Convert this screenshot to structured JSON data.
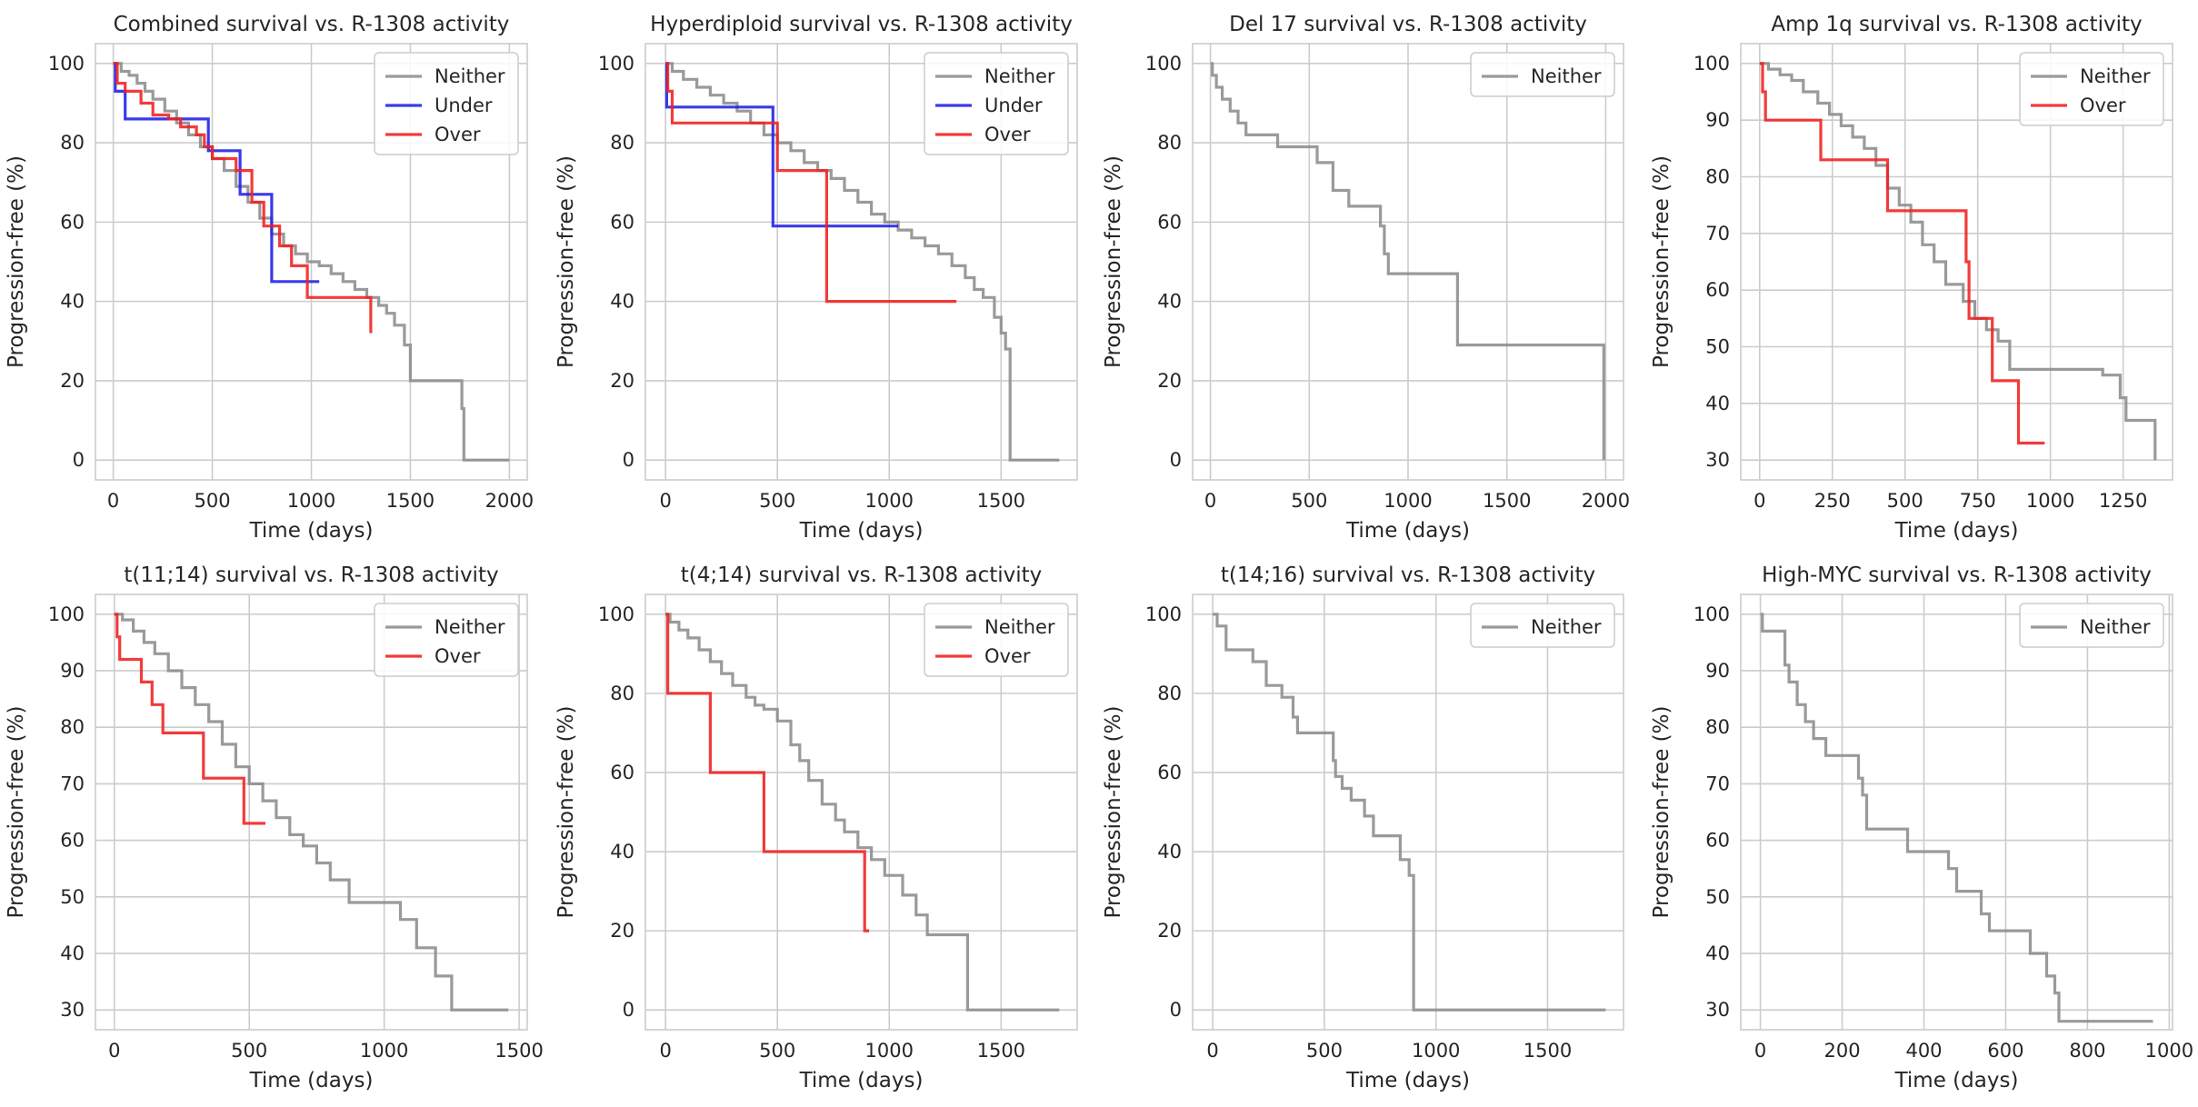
{
  "colors": {
    "Neither": "#8c8c8c",
    "Under": "#1f1fe6",
    "Over": "#f02020"
  },
  "chart_data": [
    {
      "type": "line",
      "title": "Combined survival vs. R-1308 activity",
      "xlabel": "Time (days)",
      "ylabel": "Progression-free (%)",
      "xlim": [
        -90,
        2090
      ],
      "ylim": [
        -5,
        105
      ],
      "xticks": [
        0,
        500,
        1000,
        1500,
        2000
      ],
      "yticks": [
        0,
        20,
        40,
        60,
        80,
        100
      ],
      "grid": true,
      "legend": "top-right",
      "series": [
        {
          "name": "Neither",
          "step": true,
          "x": [
            0,
            40,
            80,
            120,
            160,
            200,
            260,
            320,
            380,
            440,
            500,
            560,
            620,
            680,
            740,
            800,
            860,
            920,
            980,
            1040,
            1100,
            1160,
            1220,
            1280,
            1340,
            1380,
            1420,
            1470,
            1500,
            1760,
            1770,
            2000
          ],
          "y": [
            100,
            98,
            97,
            95,
            93,
            91,
            88,
            85,
            82,
            79,
            76,
            73,
            69,
            65,
            61,
            57,
            54,
            52,
            50,
            49,
            47,
            45,
            43,
            41,
            39,
            37,
            34,
            29,
            20,
            13,
            0,
            0
          ]
        },
        {
          "name": "Under",
          "step": true,
          "x": [
            0,
            10,
            60,
            480,
            640,
            800,
            1040
          ],
          "y": [
            100,
            93,
            86,
            78,
            67,
            45,
            45
          ]
        },
        {
          "name": "Over",
          "step": true,
          "x": [
            0,
            20,
            60,
            140,
            200,
            280,
            340,
            420,
            460,
            500,
            620,
            700,
            760,
            840,
            900,
            980,
            1300
          ],
          "y": [
            100,
            95,
            93,
            90,
            87,
            86,
            84,
            82,
            79,
            76,
            73,
            65,
            59,
            54,
            49,
            41,
            32
          ]
        }
      ]
    },
    {
      "type": "line",
      "title": "Hyperdiploid survival vs. R-1308 activity",
      "xlabel": "Time (days)",
      "ylabel": "Progression-free (%)",
      "xlim": [
        -90,
        1840
      ],
      "ylim": [
        -5,
        105
      ],
      "xticks": [
        0,
        500,
        1000,
        1500
      ],
      "yticks": [
        0,
        20,
        40,
        60,
        80,
        100
      ],
      "grid": true,
      "legend": "top-right",
      "series": [
        {
          "name": "Neither",
          "step": true,
          "x": [
            0,
            30,
            80,
            140,
            200,
            260,
            320,
            380,
            440,
            500,
            560,
            620,
            680,
            740,
            800,
            860,
            920,
            980,
            1040,
            1100,
            1160,
            1220,
            1280,
            1340,
            1380,
            1420,
            1470,
            1500,
            1520,
            1540,
            1760
          ],
          "y": [
            100,
            98,
            96,
            94,
            92,
            90,
            88,
            85,
            82,
            80,
            78,
            75,
            73,
            71,
            68,
            65,
            62,
            60,
            58,
            56,
            54,
            52,
            49,
            46,
            43,
            41,
            36,
            32,
            28,
            0,
            0
          ]
        },
        {
          "name": "Under",
          "step": true,
          "x": [
            0,
            5,
            480,
            1040
          ],
          "y": [
            100,
            89,
            59,
            59
          ]
        },
        {
          "name": "Over",
          "step": true,
          "x": [
            0,
            10,
            30,
            500,
            720,
            1300
          ],
          "y": [
            100,
            93,
            85,
            73,
            40,
            40
          ]
        }
      ]
    },
    {
      "type": "line",
      "title": "Del 17 survival vs. R-1308 activity",
      "xlabel": "Time (days)",
      "ylabel": "Progression-free (%)",
      "xlim": [
        -90,
        2090
      ],
      "ylim": [
        -5,
        105
      ],
      "xticks": [
        0,
        500,
        1000,
        1500,
        2000
      ],
      "yticks": [
        0,
        20,
        40,
        60,
        80,
        100
      ],
      "grid": true,
      "legend": "top-right",
      "series": [
        {
          "name": "Neither",
          "step": true,
          "x": [
            0,
            10,
            30,
            60,
            100,
            140,
            180,
            340,
            540,
            620,
            700,
            860,
            880,
            900,
            1250,
            1990
          ],
          "y": [
            100,
            97,
            94,
            91,
            88,
            85,
            82,
            79,
            75,
            68,
            64,
            59,
            52,
            47,
            29,
            0
          ]
        }
      ]
    },
    {
      "type": "line",
      "title": "Amp 1q survival vs. R-1308 activity",
      "xlabel": "Time (days)",
      "ylabel": "Progression-free (%)",
      "xlim": [
        -65,
        1420
      ],
      "ylim": [
        26.5,
        103.5
      ],
      "xticks": [
        0,
        250,
        500,
        750,
        1000,
        1250
      ],
      "yticks": [
        30,
        40,
        50,
        60,
        70,
        80,
        90,
        100
      ],
      "grid": true,
      "legend": "top-right",
      "series": [
        {
          "name": "Neither",
          "step": true,
          "x": [
            0,
            30,
            70,
            110,
            150,
            200,
            240,
            280,
            320,
            360,
            400,
            440,
            480,
            520,
            560,
            600,
            640,
            700,
            740,
            780,
            820,
            860,
            1180,
            1240,
            1260,
            1360
          ],
          "y": [
            100,
            99,
            98,
            97,
            95,
            93,
            91,
            89,
            87,
            85,
            82,
            78,
            75,
            72,
            68,
            65,
            61,
            58,
            55,
            53,
            51,
            46,
            45,
            41,
            37,
            30
          ]
        },
        {
          "name": "Over",
          "step": true,
          "x": [
            0,
            10,
            20,
            210,
            440,
            710,
            720,
            800,
            890,
            980
          ],
          "y": [
            100,
            95,
            90,
            83,
            74,
            65,
            55,
            44,
            33,
            33
          ]
        }
      ]
    },
    {
      "type": "line",
      "title": "t(11;14) survival vs. R-1308 activity",
      "xlabel": "Time (days)",
      "ylabel": "Progression-free (%)",
      "xlim": [
        -70,
        1530
      ],
      "ylim": [
        26.5,
        103.5
      ],
      "xticks": [
        0,
        500,
        1000,
        1500
      ],
      "yticks": [
        30,
        40,
        50,
        60,
        70,
        80,
        90,
        100
      ],
      "grid": true,
      "legend": "top-right",
      "series": [
        {
          "name": "Neither",
          "step": true,
          "x": [
            0,
            30,
            70,
            110,
            150,
            200,
            250,
            300,
            350,
            400,
            450,
            500,
            550,
            600,
            650,
            700,
            750,
            800,
            870,
            1060,
            1120,
            1190,
            1250,
            1460
          ],
          "y": [
            100,
            99,
            97,
            95,
            93,
            90,
            87,
            84,
            81,
            77,
            73,
            70,
            67,
            64,
            61,
            59,
            56,
            53,
            49,
            46,
            41,
            36,
            30,
            30
          ]
        },
        {
          "name": "Over",
          "step": true,
          "x": [
            0,
            10,
            20,
            100,
            140,
            180,
            330,
            480,
            560
          ],
          "y": [
            100,
            96,
            92,
            88,
            84,
            79,
            71,
            63,
            63
          ]
        }
      ]
    },
    {
      "type": "line",
      "title": "t(4;14) survival vs. R-1308 activity",
      "xlabel": "Time (days)",
      "ylabel": "Progression-free (%)",
      "xlim": [
        -90,
        1840
      ],
      "ylim": [
        -5,
        105
      ],
      "xticks": [
        0,
        500,
        1000,
        1500
      ],
      "yticks": [
        0,
        20,
        40,
        60,
        80,
        100
      ],
      "grid": true,
      "legend": "top-right",
      "series": [
        {
          "name": "Neither",
          "step": true,
          "x": [
            0,
            20,
            60,
            100,
            150,
            200,
            250,
            300,
            360,
            400,
            440,
            500,
            560,
            600,
            640,
            700,
            760,
            800,
            860,
            920,
            980,
            1060,
            1120,
            1170,
            1350,
            1760
          ],
          "y": [
            100,
            98,
            96,
            94,
            91,
            88,
            85,
            82,
            79,
            77,
            76,
            73,
            67,
            63,
            58,
            52,
            48,
            45,
            41,
            38,
            34,
            29,
            24,
            19,
            0,
            0
          ]
        },
        {
          "name": "Over",
          "step": true,
          "x": [
            0,
            10,
            200,
            440,
            890,
            910
          ],
          "y": [
            100,
            80,
            60,
            40,
            20,
            20
          ]
        }
      ]
    },
    {
      "type": "line",
      "title": "t(14;16) survival vs. R-1308 activity",
      "xlabel": "Time (days)",
      "ylabel": "Progression-free (%)",
      "xlim": [
        -90,
        1840
      ],
      "ylim": [
        -5,
        105
      ],
      "xticks": [
        0,
        500,
        1000,
        1500
      ],
      "yticks": [
        0,
        20,
        40,
        60,
        80,
        100
      ],
      "grid": true,
      "legend": "top-right",
      "series": [
        {
          "name": "Neither",
          "step": true,
          "x": [
            0,
            20,
            60,
            180,
            240,
            310,
            360,
            380,
            540,
            550,
            580,
            620,
            680,
            720,
            840,
            880,
            900,
            1760
          ],
          "y": [
            100,
            97,
            91,
            88,
            82,
            79,
            74,
            70,
            63,
            59,
            56,
            53,
            49,
            44,
            38,
            34,
            0,
            0
          ]
        }
      ]
    },
    {
      "type": "line",
      "title": "High-MYC survival vs. R-1308 activity",
      "xlabel": "Time (days)",
      "ylabel": "Progression-free (%)",
      "xlim": [
        -48,
        1008
      ],
      "ylim": [
        26.5,
        103.5
      ],
      "xticks": [
        0,
        200,
        400,
        600,
        800,
        1000
      ],
      "yticks": [
        30,
        40,
        50,
        60,
        70,
        80,
        90,
        100
      ],
      "grid": true,
      "legend": "top-right",
      "series": [
        {
          "name": "Neither",
          "step": true,
          "x": [
            0,
            5,
            60,
            70,
            90,
            110,
            130,
            160,
            240,
            250,
            260,
            360,
            460,
            480,
            540,
            560,
            660,
            700,
            720,
            730,
            960
          ],
          "y": [
            100,
            97,
            91,
            88,
            84,
            81,
            78,
            75,
            71,
            68,
            62,
            58,
            55,
            51,
            47,
            44,
            40,
            36,
            33,
            28,
            28
          ]
        }
      ]
    }
  ]
}
